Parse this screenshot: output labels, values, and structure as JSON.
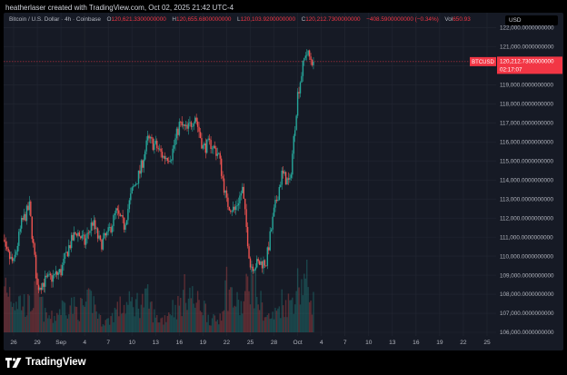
{
  "header": {
    "credit": "heatherlaser created with TradingView.com, Oct 02, 2025 21:42 UTC-4"
  },
  "legend": {
    "symbol": "Bitcoin / U.S. Dollar · 4h · Coinbase",
    "open_label": "O",
    "open": "120,621.3300000000",
    "high_label": "H",
    "high": "120,655.6800000000",
    "low_label": "L",
    "low": "120,103.9200000000",
    "close_label": "C",
    "close": "120,212.7300000000",
    "change": "−408.5900000000 (−0.34%)",
    "vol_label": "Vol",
    "vol": "650.93"
  },
  "currency_button": "USD",
  "price_label": {
    "symbol": "BTCUSD",
    "price": "120,212.7300000000",
    "countdown": "02:17:07"
  },
  "footer": {
    "brand": "TradingView"
  },
  "colors": {
    "up": "#26a69a",
    "down": "#ef5350",
    "price_tag": "#f23645",
    "background": "#161a25",
    "grid": "#232733",
    "axis_text": "#b2b5be"
  },
  "chart_data": {
    "type": "candlestick",
    "symbol": "BTCUSD",
    "interval": "4h",
    "exchange": "Coinbase",
    "y_axis": {
      "position": "right",
      "range": [
        106000,
        122400
      ],
      "ticks": [
        106000,
        107000,
        108000,
        109000,
        110000,
        111000,
        112000,
        113000,
        114000,
        115000,
        116000,
        117000,
        118000,
        119000,
        120000,
        121000,
        122000
      ],
      "tick_labels": [
        "106,000.0000000000",
        "107,000.0000000000",
        "108,000.0000000000",
        "109,000.0000000000",
        "110,000.0000000000",
        "111,000.0000000000",
        "112,000.0000000000",
        "113,000.0000000000",
        "114,000.0000000000",
        "115,000.0000000000",
        "116,000.0000000000",
        "117,000.0000000000",
        "118,000.0000000000",
        "119,000.0000000000",
        "120,000.0000000000",
        "121,000.0000000000",
        "122,000.0000000000"
      ]
    },
    "x_axis": {
      "ticks": [
        {
          "label": "26",
          "date": "2025-08-26"
        },
        {
          "label": "29",
          "date": "2025-08-29"
        },
        {
          "label": "Sep",
          "date": "2025-09-01"
        },
        {
          "label": "4",
          "date": "2025-09-04"
        },
        {
          "label": "7",
          "date": "2025-09-07"
        },
        {
          "label": "10",
          "date": "2025-09-10"
        },
        {
          "label": "13",
          "date": "2025-09-13"
        },
        {
          "label": "16",
          "date": "2025-09-16"
        },
        {
          "label": "19",
          "date": "2025-09-19"
        },
        {
          "label": "22",
          "date": "2025-09-22"
        },
        {
          "label": "25",
          "date": "2025-09-25"
        },
        {
          "label": "28",
          "date": "2025-09-28"
        },
        {
          "label": "Oct",
          "date": "2025-10-01"
        },
        {
          "label": "4",
          "date": "2025-10-04"
        },
        {
          "label": "7",
          "date": "2025-10-07"
        },
        {
          "label": "10",
          "date": "2025-10-10"
        },
        {
          "label": "13",
          "date": "2025-10-13"
        },
        {
          "label": "16",
          "date": "2025-10-16"
        },
        {
          "label": "19",
          "date": "2025-10-19"
        },
        {
          "label": "22",
          "date": "2025-10-22"
        },
        {
          "label": "25",
          "date": "2025-10-25"
        }
      ]
    },
    "last_price": 120212.73,
    "grid": true,
    "price_path": [
      [
        "2025-08-24",
        111800
      ],
      [
        "2025-08-25",
        110200
      ],
      [
        "2025-08-26",
        109600
      ],
      [
        "2025-08-27",
        111700
      ],
      [
        "2025-08-28",
        112600
      ],
      [
        "2025-08-29",
        108400
      ],
      [
        "2025-08-30",
        108700
      ],
      [
        "2025-08-31",
        108900
      ],
      [
        "2025-09-01",
        109200
      ],
      [
        "2025-09-02",
        110500
      ],
      [
        "2025-09-03",
        111300
      ],
      [
        "2025-09-04",
        110700
      ],
      [
        "2025-09-05",
        111800
      ],
      [
        "2025-09-06",
        110600
      ],
      [
        "2025-09-07",
        111200
      ],
      [
        "2025-09-08",
        112300
      ],
      [
        "2025-09-09",
        111600
      ],
      [
        "2025-09-10",
        113400
      ],
      [
        "2025-09-11",
        114400
      ],
      [
        "2025-09-12",
        116100
      ],
      [
        "2025-09-13",
        115800
      ],
      [
        "2025-09-14",
        115200
      ],
      [
        "2025-09-15",
        115300
      ],
      [
        "2025-09-16",
        116900
      ],
      [
        "2025-09-17",
        116600
      ],
      [
        "2025-09-18",
        117400
      ],
      [
        "2025-09-19",
        115700
      ],
      [
        "2025-09-20",
        115900
      ],
      [
        "2025-09-21",
        115300
      ],
      [
        "2025-09-22",
        112800
      ],
      [
        "2025-09-23",
        112400
      ],
      [
        "2025-09-24",
        113500
      ],
      [
        "2025-09-25",
        109500
      ],
      [
        "2025-09-26",
        109600
      ],
      [
        "2025-09-27",
        109700
      ],
      [
        "2025-09-28",
        112300
      ],
      [
        "2025-09-29",
        114300
      ],
      [
        "2025-09-30",
        113800
      ],
      [
        "2025-10-01",
        118500
      ],
      [
        "2025-10-02",
        120700
      ],
      [
        "2025-10-03",
        120212.73
      ]
    ],
    "volume_series": [
      [
        "2025-08-24",
        420
      ],
      [
        "2025-08-25",
        1100
      ],
      [
        "2025-08-26",
        760
      ],
      [
        "2025-08-27",
        650
      ],
      [
        "2025-08-28",
        560
      ],
      [
        "2025-08-29",
        900
      ],
      [
        "2025-08-30",
        360
      ],
      [
        "2025-08-31",
        300
      ],
      [
        "2025-09-01",
        520
      ],
      [
        "2025-09-02",
        640
      ],
      [
        "2025-09-03",
        480
      ],
      [
        "2025-09-04",
        560
      ],
      [
        "2025-09-05",
        720
      ],
      [
        "2025-09-06",
        260
      ],
      [
        "2025-09-07",
        240
      ],
      [
        "2025-09-08",
        500
      ],
      [
        "2025-09-09",
        560
      ],
      [
        "2025-09-10",
        620
      ],
      [
        "2025-09-11",
        640
      ],
      [
        "2025-09-12",
        700
      ],
      [
        "2025-09-13",
        300
      ],
      [
        "2025-09-14",
        280
      ],
      [
        "2025-09-15",
        540
      ],
      [
        "2025-09-16",
        560
      ],
      [
        "2025-09-17",
        980
      ],
      [
        "2025-09-18",
        620
      ],
      [
        "2025-09-19",
        600
      ],
      [
        "2025-09-20",
        260
      ],
      [
        "2025-09-21",
        260
      ],
      [
        "2025-09-22",
        1050
      ],
      [
        "2025-09-23",
        640
      ],
      [
        "2025-09-24",
        520
      ],
      [
        "2025-09-25",
        1250
      ],
      [
        "2025-09-26",
        760
      ],
      [
        "2025-09-27",
        330
      ],
      [
        "2025-09-28",
        340
      ],
      [
        "2025-09-29",
        680
      ],
      [
        "2025-09-30",
        620
      ],
      [
        "2025-10-01",
        1020
      ],
      [
        "2025-10-02",
        1150
      ],
      [
        "2025-10-03",
        650.93
      ]
    ]
  }
}
